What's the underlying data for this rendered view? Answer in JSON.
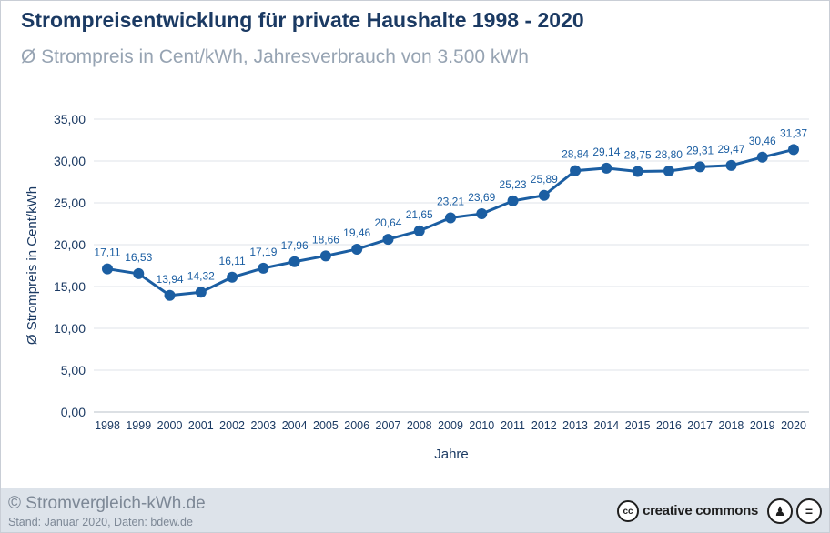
{
  "header": {
    "title": "Strompreisentwicklung für private Haushalte 1998 - 2020",
    "subtitle": "Ø Strompreis in Cent/kWh, Jahresverbrauch von 3.500 kWh"
  },
  "footer": {
    "copyright": "© Stromvergleich-kWh.de",
    "stand": "Stand: Januar 2020, Daten: bdew.de",
    "cc_logo_text": "creative commons",
    "cc_logo_mark": "cc",
    "license_icons": [
      "person-icon",
      "equals-icon"
    ]
  },
  "colors": {
    "line": "#1b5ea2",
    "marker": "#1b5ea2",
    "label": "#1b5ea2",
    "grid": "#dfe3e8",
    "axis_text": "#1b3a63"
  },
  "chart_data": {
    "type": "line",
    "title": "Strompreisentwicklung für private Haushalte 1998 - 2020",
    "subtitle": "Ø Strompreis in Cent/kWh, Jahresverbrauch von 3.500 kWh",
    "xlabel": "Jahre",
    "ylabel": "Ø Strompreis in Cent/kWh",
    "ylim": [
      0,
      35
    ],
    "yticks": [
      "0,00",
      "5,00",
      "10,00",
      "15,00",
      "20,00",
      "25,00",
      "30,00",
      "35,00"
    ],
    "ytick_values": [
      0,
      5,
      10,
      15,
      20,
      25,
      30,
      35
    ],
    "grid": true,
    "legend": "none",
    "categories": [
      "1998",
      "1999",
      "2000",
      "2001",
      "2002",
      "2003",
      "2004",
      "2005",
      "2006",
      "2007",
      "2008",
      "2009",
      "2010",
      "2011",
      "2012",
      "2013",
      "2014",
      "2015",
      "2016",
      "2017",
      "2018",
      "2019",
      "2020"
    ],
    "values": [
      17.11,
      16.53,
      13.94,
      14.32,
      16.11,
      17.19,
      17.96,
      18.66,
      19.46,
      20.64,
      21.65,
      23.21,
      23.69,
      25.23,
      25.89,
      28.84,
      29.14,
      28.75,
      28.8,
      29.31,
      29.47,
      30.46,
      31.37
    ],
    "data_labels": [
      "17,11",
      "16,53",
      "13,94",
      "14,32",
      "16,11",
      "17,19",
      "17,96",
      "18,66",
      "19,46",
      "20,64",
      "21,65",
      "23,21",
      "23,69",
      "25,23",
      "25,89",
      "28,84",
      "29,14",
      "28,75",
      "28,80",
      "29,31",
      "29,47",
      "30,46",
      "31,37"
    ]
  }
}
